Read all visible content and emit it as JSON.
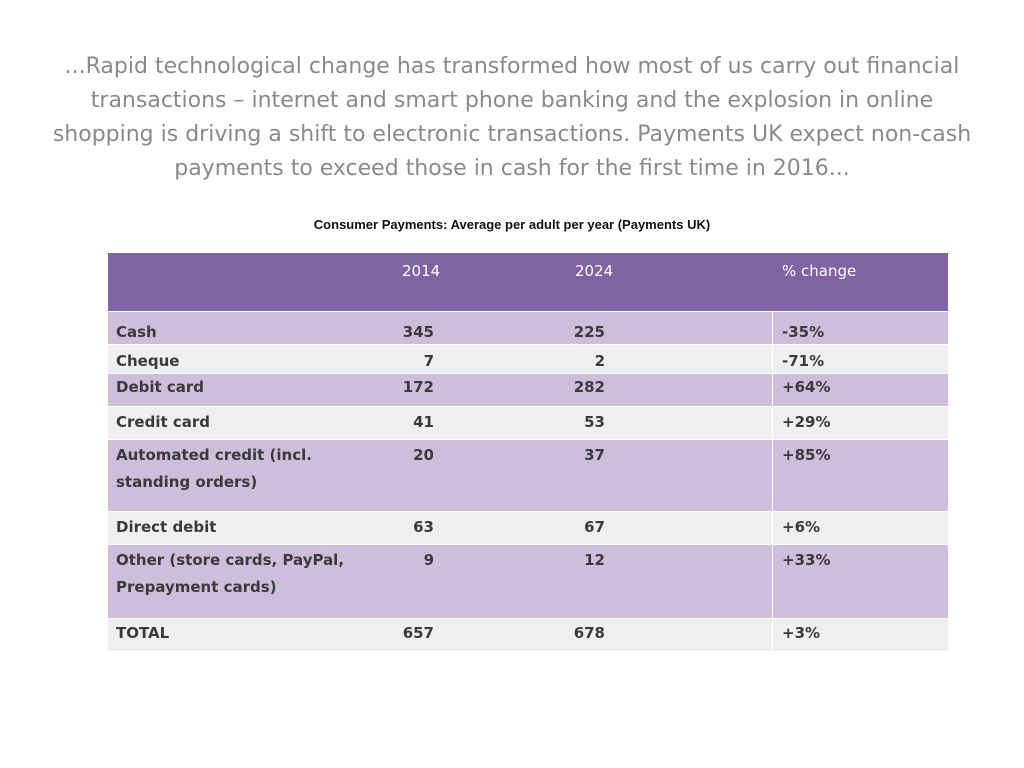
{
  "intro_text": "...Rapid technological change has transformed how most of us carry out financial transactions – internet and smart phone banking and the explosion in online shopping is driving a shift to electronic transactions. Payments UK expect non-cash payments to exceed those in cash for the first time in 2016...",
  "table_title": "Consumer Payments: Average per adult per year (Payments UK)",
  "colors": {
    "header_bg": "#7f63a3",
    "row_purple": "#cdbfdb",
    "row_gray": "#efefef",
    "intro_text": "#8a8a8a"
  },
  "table": {
    "headers": [
      "",
      "2014",
      "2024",
      "% change"
    ],
    "rows": [
      {
        "name": "Cash",
        "v2014": "345",
        "v2024": "225",
        "change": "-35%"
      },
      {
        "name": "Cheque",
        "v2014": "7",
        "v2024": "2",
        "change": "-71%"
      },
      {
        "name": "Debit card",
        "v2014": "172",
        "v2024": "282",
        "change": "+64%"
      },
      {
        "name": "Credit card",
        "v2014": "41",
        "v2024": "53",
        "change": "+29%"
      },
      {
        "name": "Automated credit (incl. standing orders)",
        "v2014": "20",
        "v2024": "37",
        "change": "+85%"
      },
      {
        "name": "Direct debit",
        "v2014": "63",
        "v2024": "67",
        "change": "+6%"
      },
      {
        "name": "Other (store cards, PayPal, Prepayment cards)",
        "v2014": "9",
        "v2024": "12",
        "change": "+33%"
      },
      {
        "name": "TOTAL",
        "v2014": "657",
        "v2024": "678",
        "change": "+3%"
      }
    ]
  }
}
